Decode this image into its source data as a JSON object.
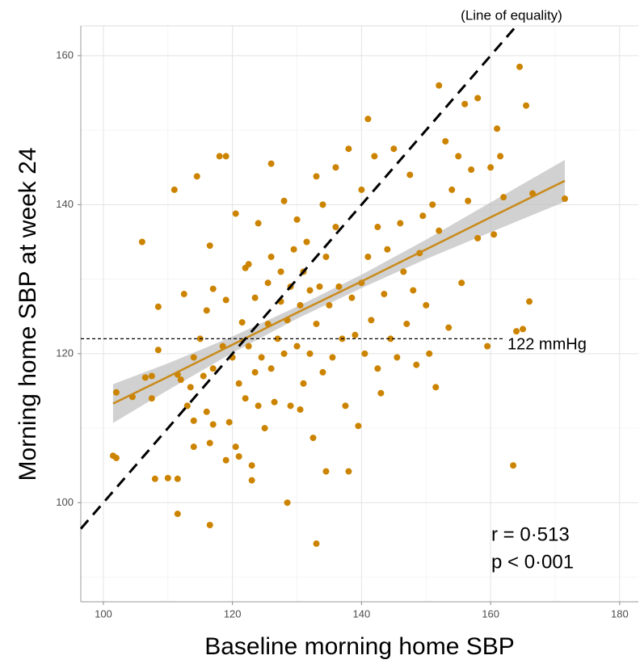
{
  "chart_data": {
    "type": "scatter",
    "x_label": "Baseline morning home SBP",
    "y_label": "Morning home SBP at week 24",
    "xlim": [
      96.5,
      182.9
    ],
    "ylim": [
      86.7,
      164.0
    ],
    "xticks": [
      100,
      120,
      140,
      160,
      180
    ],
    "yticks": [
      100,
      120,
      140,
      160
    ],
    "xminorticks": [
      110,
      130,
      150,
      170
    ],
    "yminorticks": [
      90,
      110,
      130,
      150
    ],
    "grid": true,
    "color": "#cc8400",
    "x": [
      101.5,
      102,
      102,
      104.5,
      106,
      106.5,
      107.5,
      107.5,
      108,
      108.5,
      108.5,
      110,
      111,
      111.5,
      111.5,
      111.5,
      112,
      112.5,
      113,
      113.5,
      114,
      114,
      114,
      114.5,
      115,
      115.5,
      116,
      116,
      116.5,
      116.5,
      116.5,
      117,
      117,
      117,
      118,
      118.5,
      119,
      119,
      119,
      119.5,
      120,
      120.5,
      120.5,
      121,
      121,
      121.5,
      122,
      122,
      122.5,
      122.5,
      123,
      123,
      123.5,
      123.5,
      124,
      124,
      124.5,
      125,
      125.5,
      125.5,
      126,
      126,
      126,
      126.5,
      127,
      127.5,
      127.5,
      128,
      128,
      128.5,
      128.5,
      129,
      129,
      129.5,
      130,
      130,
      130.5,
      130.5,
      131,
      131,
      131.5,
      132,
      132,
      132.5,
      133,
      133,
      133,
      133.5,
      134,
      134,
      134.5,
      134.5,
      135,
      135.5,
      136,
      136,
      136.5,
      137,
      137.5,
      138,
      138,
      138.5,
      139,
      139.5,
      140,
      140,
      140.5,
      141,
      141,
      141.5,
      142,
      142.5,
      142.5,
      143,
      143.5,
      144,
      144.5,
      145,
      145.5,
      146,
      146.5,
      147,
      147.5,
      148,
      148.5,
      149,
      149.5,
      150,
      150.5,
      151,
      151.5,
      152,
      152,
      153,
      153.5,
      154,
      155,
      155.5,
      156,
      156.5,
      157,
      158,
      158,
      159.5,
      160,
      160.5,
      161,
      161.5,
      162,
      163.5,
      164,
      164.5,
      165,
      165.5,
      166,
      166.5,
      171.5
    ],
    "y": [
      106.3,
      106,
      114.8,
      114.2,
      135,
      116.8,
      117,
      114,
      103.2,
      126.3,
      120.5,
      103.3,
      142,
      98.5,
      103.2,
      117.2,
      116.5,
      128,
      113,
      115.5,
      107.5,
      119.5,
      111,
      143.8,
      122,
      117,
      125.8,
      112.2,
      134.5,
      97,
      108,
      128.7,
      110.5,
      118,
      146.5,
      121,
      146.5,
      127.2,
      105.7,
      110.8,
      119.5,
      138.8,
      107.5,
      106.2,
      116,
      124.2,
      131.5,
      114,
      132,
      121,
      103,
      105,
      117.5,
      127.5,
      137.5,
      113,
      119.5,
      110,
      124,
      129.5,
      145.5,
      133,
      118,
      113.5,
      122,
      127,
      131,
      140.5,
      120,
      100,
      124.5,
      129,
      113,
      134,
      138,
      121,
      126.5,
      112.5,
      116,
      131,
      135,
      120,
      128.5,
      108.7,
      94.5,
      143.8,
      124,
      129,
      140,
      117.5,
      104.2,
      133,
      126.5,
      119.5,
      137,
      145,
      129,
      122,
      113,
      104.2,
      147.5,
      127.5,
      122.5,
      110.3,
      142,
      129.5,
      120,
      151.5,
      133,
      124.5,
      146.5,
      137,
      118,
      114.7,
      128,
      134,
      122,
      147.5,
      119.5,
      137.5,
      131,
      124,
      144,
      128.5,
      118.5,
      133.5,
      138.5,
      126.5,
      120,
      140,
      115.5,
      156,
      136.5,
      148.5,
      123.5,
      142,
      146.5,
      129.5,
      153.5,
      140.5,
      144.7,
      154.3,
      135.5,
      121,
      145,
      136,
      150.2,
      146.5,
      141,
      105,
      123,
      158.5,
      123.3,
      153.3,
      127,
      141.5,
      140.8
    ],
    "fit": {
      "color": "#c98a1a",
      "band_color": "#bdbdbd",
      "x": [
        101.5,
        110,
        120,
        130,
        140,
        150,
        160,
        171.5
      ],
      "y": [
        113.3,
        116.9,
        121.2,
        125.5,
        129.7,
        134.0,
        138.3,
        143.2
      ],
      "lower": [
        110.7,
        115.1,
        120.1,
        124.7,
        128.8,
        132.7,
        136.3,
        140.4
      ],
      "upper": [
        115.9,
        118.7,
        122.3,
        126.3,
        130.6,
        135.3,
        140.3,
        146.0
      ]
    },
    "equality_line": {
      "label": "(Line of equality)",
      "x": [
        96.5,
        164.0
      ],
      "y": [
        96.5,
        164.0
      ]
    },
    "threshold_line": {
      "label": "122 mmHg",
      "y": 122,
      "x": [
        96.5,
        162
      ]
    },
    "stats": [
      "r = 0·513",
      "p < 0·001"
    ]
  }
}
